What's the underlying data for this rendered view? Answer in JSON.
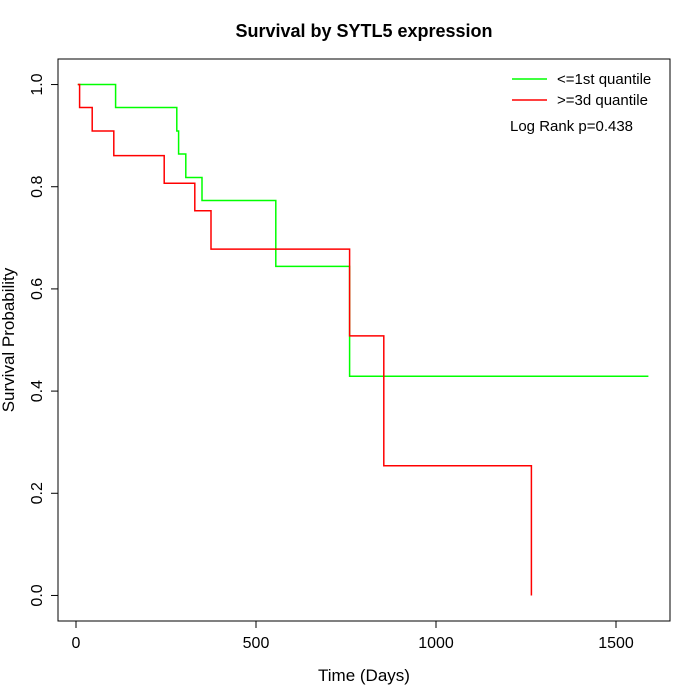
{
  "chart_data": {
    "type": "line",
    "title": "Survival by SYTL5 expression",
    "xlabel": "Time (Days)",
    "ylabel": "Survival Probability",
    "xlim": [
      -50,
      1650
    ],
    "ylim": [
      -0.05,
      1.05
    ],
    "x_ticks": [
      0,
      500,
      1000,
      1500
    ],
    "y_ticks": [
      0.0,
      0.2,
      0.4,
      0.6,
      0.8,
      1.0
    ],
    "x_tick_labels": [
      "0",
      "500",
      "1000",
      "1500"
    ],
    "y_tick_labels": [
      "0.0",
      "0.2",
      "0.4",
      "0.6",
      "0.8",
      "1.0"
    ],
    "grid": false,
    "legend_position": "top-right",
    "annotation": "Log Rank p=0.438",
    "series": [
      {
        "name": "<=1st quantile",
        "color": "#00ff00",
        "step_points": [
          [
            5,
            1.0
          ],
          [
            110,
            1.0
          ],
          [
            110,
            0.955
          ],
          [
            280,
            0.955
          ],
          [
            280,
            0.909
          ],
          [
            285,
            0.909
          ],
          [
            285,
            0.864
          ],
          [
            305,
            0.864
          ],
          [
            305,
            0.818
          ],
          [
            350,
            0.818
          ],
          [
            350,
            0.773
          ],
          [
            555,
            0.773
          ],
          [
            555,
            0.644
          ],
          [
            760,
            0.644
          ],
          [
            760,
            0.429
          ],
          [
            1590,
            0.429
          ]
        ]
      },
      {
        "name": ">=3d quantile",
        "color": "#ff0000",
        "step_points": [
          [
            5,
            1.0
          ],
          [
            10,
            1.0
          ],
          [
            10,
            0.955
          ],
          [
            45,
            0.955
          ],
          [
            45,
            0.909
          ],
          [
            105,
            0.909
          ],
          [
            105,
            0.861
          ],
          [
            245,
            0.861
          ],
          [
            245,
            0.807
          ],
          [
            330,
            0.807
          ],
          [
            330,
            0.753
          ],
          [
            375,
            0.753
          ],
          [
            375,
            0.678
          ],
          [
            760,
            0.678
          ],
          [
            760,
            0.508
          ],
          [
            855,
            0.508
          ],
          [
            855,
            0.254
          ],
          [
            1265,
            0.254
          ],
          [
            1265,
            0.0
          ]
        ]
      }
    ]
  }
}
